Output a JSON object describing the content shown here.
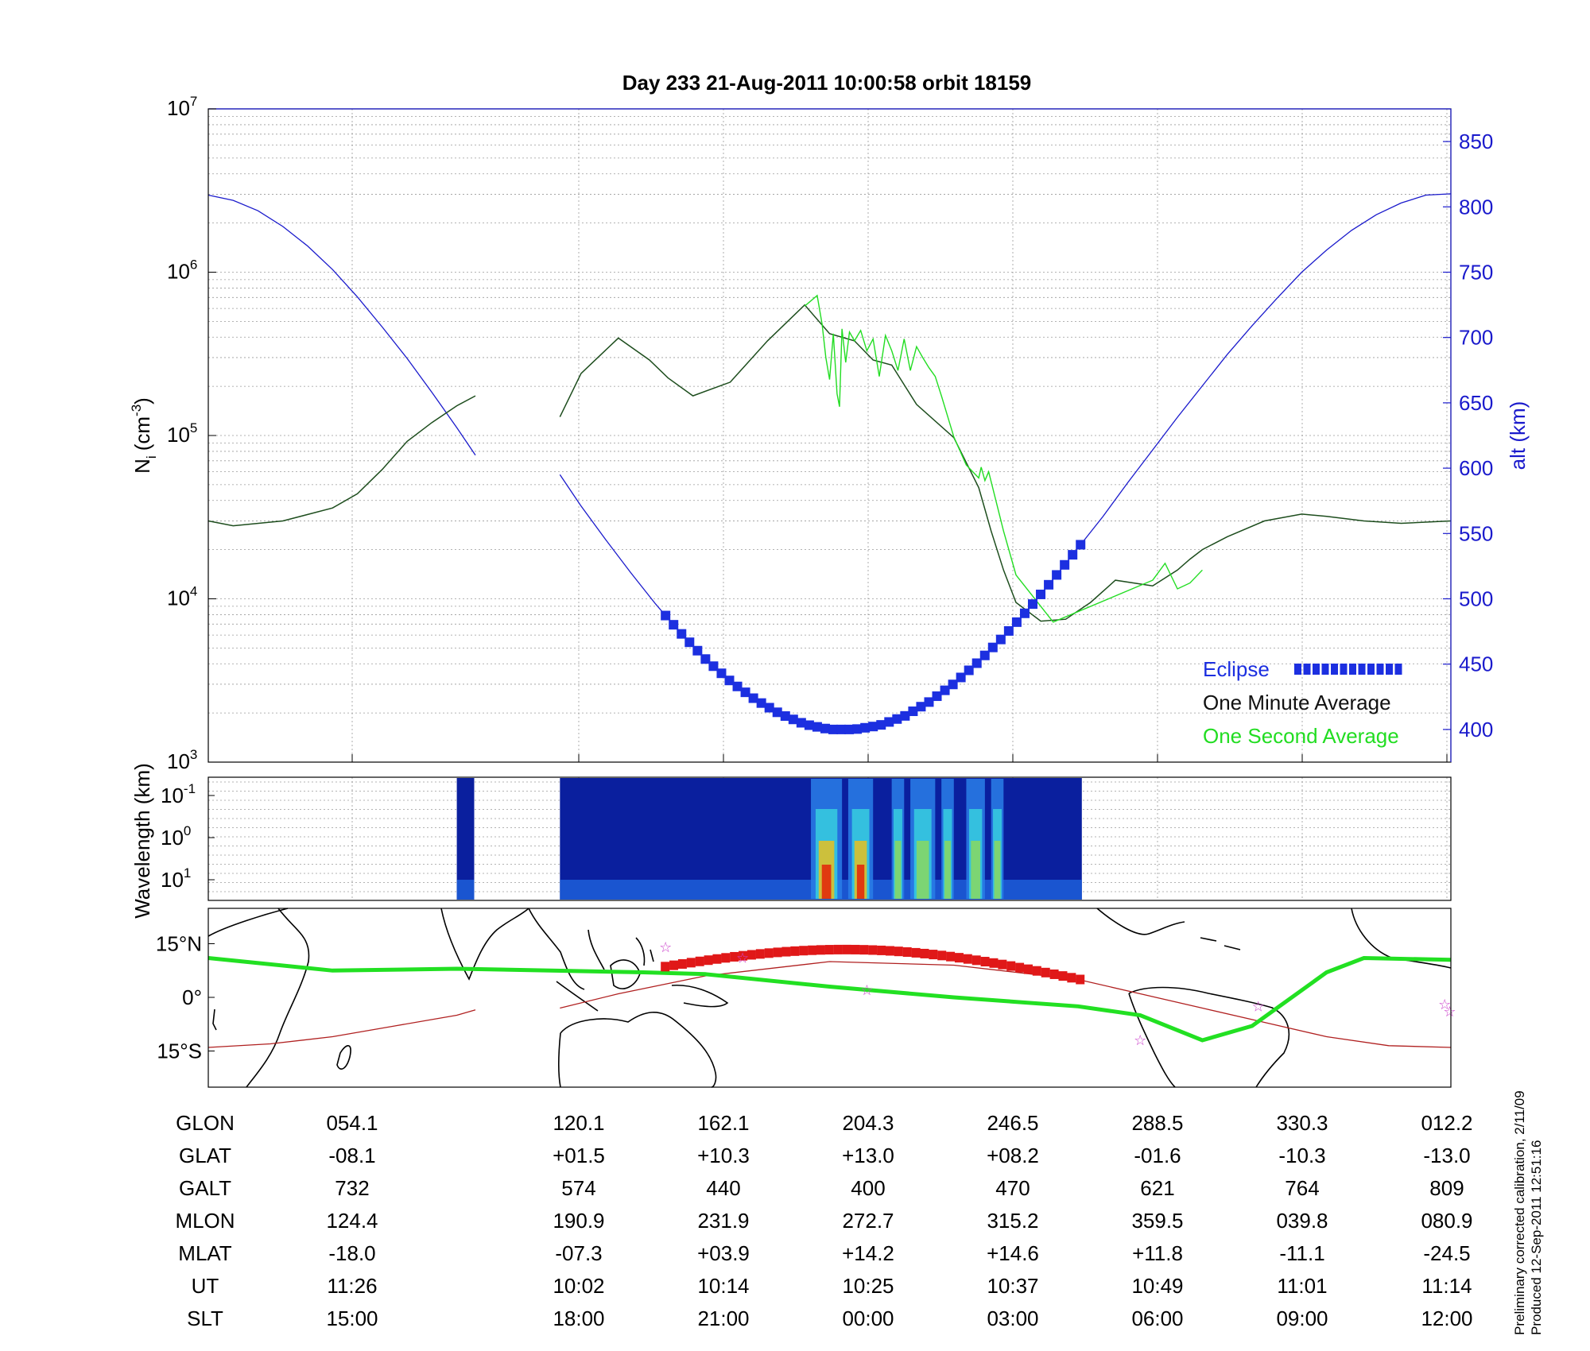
{
  "title": "Day 233  21-Aug-2011 10:00:58   orbit 18159",
  "colors": {
    "altitude": "#1a1acc",
    "one_minute": "#1d4d1d",
    "one_second": "#22dd22",
    "eclipse": "#1c2fe0",
    "track": "#22e022",
    "map_eclipse": "#e01818",
    "magnetic_equator": "#b02020",
    "stars": "#cc44cc"
  },
  "chart_data": [
    {
      "type": "line",
      "panel": "density",
      "ylabel_left": "N",
      "ylabel_left_sub": "i",
      "ylabel_left_unit": "(cm",
      "ylabel_left_sup": "-3",
      "ylabel_left_close": ")",
      "ylabel_right": "alt (km)",
      "yscale_left": "log",
      "ylim_left": [
        1000,
        10000000
      ],
      "yticks_left": [
        {
          "base": "10",
          "exp": "3"
        },
        {
          "base": "10",
          "exp": "4"
        },
        {
          "base": "10",
          "exp": "5"
        },
        {
          "base": "10",
          "exp": "6"
        },
        {
          "base": "10",
          "exp": "7"
        }
      ],
      "ylim_right": [
        375,
        875
      ],
      "yticks_right": [
        "400",
        "450",
        "500",
        "550",
        "600",
        "650",
        "700",
        "750",
        "800",
        "850"
      ],
      "x_ticks_ut": [
        "11:26",
        "10:02",
        "10:14",
        "10:25",
        "10:37",
        "10:49",
        "11:01",
        "11:14"
      ],
      "grid": true,
      "legend": {
        "placement": "bottom-right",
        "eclipse": "Eclipse",
        "one_minute": "One Minute Average",
        "one_second": "One Second Average"
      },
      "series": [
        {
          "name": "One Minute Average",
          "x": [
            0,
            0.02,
            0.06,
            0.1,
            0.12,
            0.14,
            0.16,
            0.18,
            0.2,
            0.215,
            "gap",
            0.283,
            0.3,
            0.33,
            0.355,
            0.37,
            0.39,
            0.42,
            0.45,
            0.48,
            0.5,
            0.52,
            0.535,
            0.55,
            0.57,
            0.6,
            0.62,
            0.63,
            0.64,
            0.65,
            0.67,
            0.69,
            0.71,
            0.73,
            0.76,
            0.78,
            0.79,
            0.8,
            0.82,
            0.85,
            0.88,
            0.9,
            0.93,
            0.96,
            1.0
          ],
          "y": [
            30000,
            28000,
            30000,
            36000,
            44000,
            62000,
            92000,
            120000,
            152000,
            175000,
            "gap",
            130000,
            240000,
            395000,
            290000,
            225000,
            175000,
            212000,
            380000,
            630000,
            420000,
            380000,
            290000,
            270000,
            155000,
            97000,
            48000,
            26000,
            15000,
            9500,
            7300,
            7500,
            9500,
            13000,
            12000,
            15000,
            17500,
            20000,
            24000,
            30000,
            33000,
            32000,
            30000,
            29000,
            30000
          ]
        },
        {
          "name": "One Second Average",
          "x": [
            0.48,
            0.49,
            0.494,
            0.497,
            0.5,
            0.503,
            0.506,
            0.508,
            0.51,
            0.513,
            0.516,
            0.52,
            0.525,
            0.53,
            0.535,
            0.54,
            0.545,
            0.55,
            0.555,
            0.56,
            0.565,
            0.57,
            0.575,
            0.58,
            0.585,
            0.59,
            0.6,
            0.61,
            0.62,
            0.622,
            0.625,
            0.628,
            0.64,
            0.65,
            0.68,
            0.76,
            0.77,
            0.78,
            0.79,
            0.8
          ],
          "y": [
            620000,
            720000,
            480000,
            300000,
            220000,
            420000,
            180000,
            150000,
            450000,
            280000,
            430000,
            380000,
            440000,
            330000,
            390000,
            230000,
            410000,
            330000,
            250000,
            390000,
            250000,
            350000,
            300000,
            260000,
            230000,
            175000,
            98000,
            66000,
            55000,
            64000,
            53000,
            60000,
            26000,
            14000,
            7200,
            13000,
            16500,
            11500,
            12500,
            15000
          ]
        },
        {
          "name": "alt (km)",
          "axis": "right",
          "x": [
            0.0,
            0.02,
            0.04,
            0.06,
            0.08,
            0.1,
            0.12,
            0.14,
            0.16,
            0.18,
            0.2,
            0.215,
            "gap",
            0.283,
            0.3,
            0.32,
            0.34,
            0.36,
            0.38,
            0.4,
            0.42,
            0.44,
            0.46,
            0.48,
            0.5,
            0.52,
            0.54,
            0.56,
            0.58,
            0.6,
            0.62,
            0.64,
            0.66,
            0.68,
            0.7,
            0.72,
            0.74,
            0.76,
            0.78,
            0.8,
            0.82,
            0.84,
            0.86,
            0.88,
            0.9,
            0.92,
            0.94,
            0.96,
            0.98,
            1.0
          ],
          "y": [
            809,
            805,
            797,
            785,
            770,
            752,
            731,
            708,
            684,
            658,
            631,
            610,
            "gap",
            595,
            571,
            545,
            520,
            496,
            474,
            454,
            437,
            423,
            412,
            404,
            400,
            400,
            403,
            410,
            421,
            435,
            452,
            471,
            492,
            515,
            539,
            563,
            589,
            614,
            639,
            663,
            687,
            709,
            730,
            750,
            767,
            782,
            794,
            803,
            809,
            810
          ]
        },
        {
          "name": "Eclipse",
          "axis": "right",
          "x_range": [
            0.368,
            0.702
          ],
          "y_at_ends": [
            487,
            531
          ],
          "y_min": 400
        }
      ]
    },
    {
      "type": "heatmap",
      "panel": "spectrogram",
      "ylabel": "Wavelength (km)",
      "yticks": [
        {
          "base": "10",
          "exp": "-1"
        },
        {
          "base": "10",
          "exp": "0"
        },
        {
          "base": "10",
          "exp": "1"
        }
      ],
      "data_segments": [
        [
          0.2,
          0.214
        ],
        [
          0.283,
          0.703
        ]
      ],
      "high_activity_bands": [
        [
          0.485,
          0.51
        ],
        [
          0.515,
          0.535
        ],
        [
          0.55,
          0.56
        ],
        [
          0.565,
          0.585
        ],
        [
          0.59,
          0.6
        ],
        [
          0.61,
          0.625
        ],
        [
          0.63,
          0.64
        ]
      ]
    },
    {
      "type": "map",
      "panel": "orbit-track",
      "yticks": [
        "15°N",
        "0°",
        "15°S"
      ],
      "lat_range": [
        -25,
        25
      ],
      "track_lon": [
        0.0,
        0.1,
        0.2,
        0.35,
        0.4,
        0.5,
        0.6,
        0.7,
        0.75,
        0.8,
        0.84,
        0.9,
        0.93,
        1.0
      ],
      "track_lat": [
        11,
        7.5,
        8,
        7,
        6.5,
        3,
        0,
        -2.5,
        -5,
        -12,
        -8,
        7,
        11,
        10.5
      ],
      "eclipse_track_range": [
        0.368,
        0.702
      ],
      "stars_lon": [
        0.368,
        0.43,
        0.53,
        0.75,
        0.845,
        0.995,
        0.999
      ],
      "stars_lat": [
        14,
        11,
        2,
        -12,
        -2.5,
        -2,
        -4
      ]
    }
  ],
  "table": {
    "rows": [
      {
        "label": "GLON",
        "values": [
          "054.1",
          "120.1",
          "162.1",
          "204.3",
          "246.5",
          "288.5",
          "330.3",
          "012.2"
        ]
      },
      {
        "label": "GLAT",
        "values": [
          "-08.1",
          "+01.5",
          "+10.3",
          "+13.0",
          "+08.2",
          "-01.6",
          "-10.3",
          "-13.0"
        ]
      },
      {
        "label": "GALT",
        "values": [
          "732",
          "574",
          "440",
          "400",
          "470",
          "621",
          "764",
          "809"
        ]
      },
      {
        "label": "MLON",
        "values": [
          "124.4",
          "190.9",
          "231.9",
          "272.7",
          "315.2",
          "359.5",
          "039.8",
          "080.9"
        ]
      },
      {
        "label": "MLAT",
        "values": [
          "-18.0",
          "-07.3",
          "+03.9",
          "+14.2",
          "+14.6",
          "+11.8",
          "-11.1",
          "-24.5"
        ]
      },
      {
        "label": "UT",
        "values": [
          "11:26",
          "10:02",
          "10:14",
          "10:25",
          "10:37",
          "10:49",
          "11:01",
          "11:14"
        ]
      },
      {
        "label": "SLT",
        "values": [
          "15:00",
          "18:00",
          "21:00",
          "00:00",
          "03:00",
          "06:00",
          "09:00",
          "12:00"
        ]
      }
    ]
  },
  "footnote": {
    "line1": "Preliminary corrected calibration, 2/11/09",
    "line2": "Produced 12-Sep-2011 12:51:16"
  }
}
